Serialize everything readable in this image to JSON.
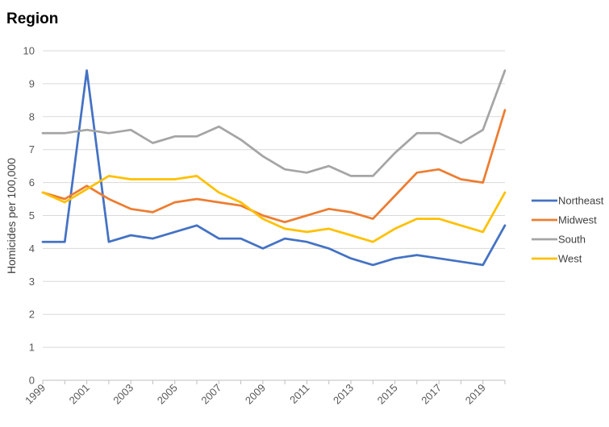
{
  "chart_data": {
    "type": "line",
    "title": "Region",
    "xlabel": "",
    "ylabel": "Homicides per 100,000",
    "x": [
      1999,
      2000,
      2001,
      2002,
      2003,
      2004,
      2005,
      2006,
      2007,
      2008,
      2009,
      2010,
      2011,
      2012,
      2013,
      2014,
      2015,
      2016,
      2017,
      2018,
      2019,
      2020
    ],
    "x_tick_labels": [
      "1999",
      "2001",
      "2003",
      "2005",
      "2007",
      "2009",
      "2011",
      "2013",
      "2015",
      "2017",
      "2019"
    ],
    "xlim": [
      1999,
      2020
    ],
    "ylim": [
      0,
      10
    ],
    "y_ticks": [
      0,
      1,
      2,
      3,
      4,
      5,
      6,
      7,
      8,
      9,
      10
    ],
    "grid": "horizontal",
    "legend_position": "right",
    "series": [
      {
        "name": "Northeast",
        "color": "#4472C4",
        "values": [
          4.2,
          4.2,
          9.4,
          4.2,
          4.4,
          4.3,
          4.5,
          4.7,
          4.3,
          4.3,
          4.0,
          4.3,
          4.2,
          4.0,
          3.7,
          3.5,
          3.7,
          3.8,
          3.7,
          3.6,
          3.5,
          4.7
        ]
      },
      {
        "name": "Midwest",
        "color": "#ED7D31",
        "values": [
          5.7,
          5.5,
          5.9,
          5.5,
          5.2,
          5.1,
          5.4,
          5.5,
          5.4,
          5.3,
          5.0,
          4.8,
          5.0,
          5.2,
          5.1,
          4.9,
          5.6,
          6.3,
          6.4,
          6.1,
          6.0,
          8.2
        ]
      },
      {
        "name": "South",
        "color": "#A5A5A5",
        "values": [
          7.5,
          7.5,
          7.6,
          7.5,
          7.6,
          7.2,
          7.4,
          7.4,
          7.7,
          7.3,
          6.8,
          6.4,
          6.3,
          6.5,
          6.2,
          6.2,
          6.9,
          7.5,
          7.5,
          7.2,
          7.6,
          9.4
        ]
      },
      {
        "name": "West",
        "color": "#FFC000",
        "values": [
          5.7,
          5.4,
          5.8,
          6.2,
          6.1,
          6.1,
          6.1,
          6.2,
          5.7,
          5.4,
          4.9,
          4.6,
          4.5,
          4.6,
          4.4,
          4.2,
          4.6,
          4.9,
          4.9,
          4.7,
          4.5,
          5.7
        ]
      }
    ]
  },
  "colors": {
    "gridline": "#D9D9D9",
    "axis_line": "#BFBFBF",
    "text": "#595959"
  }
}
